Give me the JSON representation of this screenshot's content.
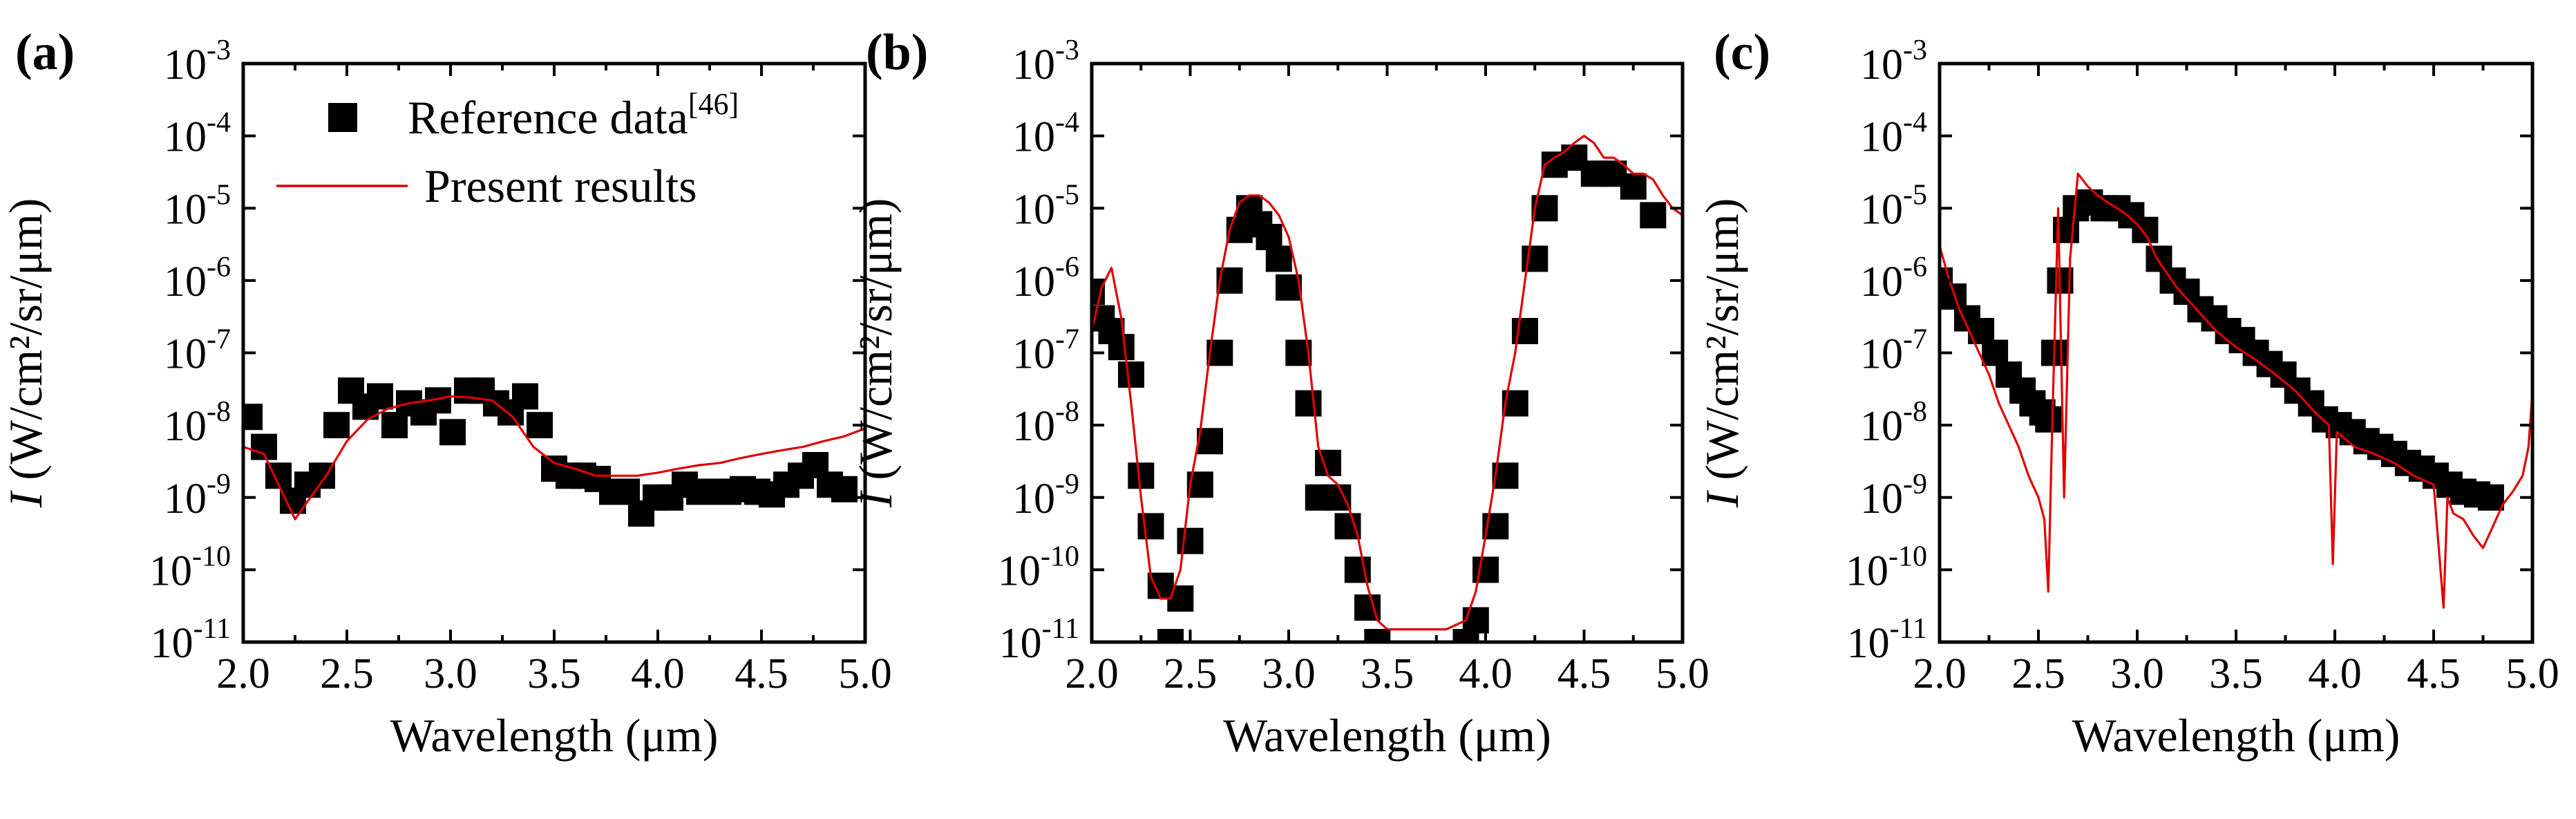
{
  "chart_data": [
    {
      "type": "scatter+line",
      "panel_label": "(a)",
      "xlabel": "Wavelength (μm)",
      "ylabel_prefix": "I",
      "ylabel_body": "(W/cm²/sr/μm)",
      "xlim": [
        2.0,
        5.0
      ],
      "ylim_log10": [
        -11,
        -3
      ],
      "xticks": [
        "2.0",
        "2.5",
        "3.0",
        "3.5",
        "4.0",
        "4.5",
        "5.0"
      ],
      "yticks": [
        "10-11",
        "10-10",
        "10-9",
        "10-8",
        "10-7",
        "10-6",
        "10-5",
        "10-4",
        "10-3"
      ],
      "legend": {
        "placement": "top-right",
        "reference_label": "Reference data",
        "reference_superscript": "[46]",
        "present_label": "Present results"
      },
      "series": [
        {
          "name": "Reference data[46]",
          "style": "black-square",
          "x": [
            2.03,
            2.1,
            2.17,
            2.24,
            2.31,
            2.38,
            2.45,
            2.52,
            2.59,
            2.66,
            2.73,
            2.8,
            2.87,
            2.94,
            3.01,
            3.08,
            3.15,
            3.22,
            3.29,
            3.36,
            3.43,
            3.5,
            3.57,
            3.64,
            3.71,
            3.78,
            3.85,
            3.92,
            3.99,
            4.06,
            4.13,
            4.2,
            4.27,
            4.34,
            4.41,
            4.48,
            4.55,
            4.62,
            4.69,
            4.76,
            4.83,
            4.9
          ],
          "y": [
            1.3e-08,
            5e-09,
            2e-09,
            9e-10,
            1.5e-09,
            2e-09,
            1e-08,
            3e-08,
            1.8e-08,
            2.5e-08,
            1e-08,
            2e-08,
            1.5e-08,
            2.2e-08,
            8e-09,
            3e-08,
            3e-08,
            2e-08,
            1.5e-08,
            2.5e-08,
            1e-08,
            2.5e-09,
            2e-09,
            2e-09,
            1.8e-09,
            1.2e-09,
            1.2e-09,
            6e-10,
            1e-09,
            1e-09,
            1.5e-09,
            1.2e-09,
            1.2e-09,
            1.2e-09,
            1.3e-09,
            1.2e-09,
            1.1e-09,
            1.5e-09,
            2e-09,
            2.8e-09,
            1.5e-09,
            1.3e-09
          ]
        },
        {
          "name": "Present results",
          "style": "red-line",
          "x": [
            2.0,
            2.1,
            2.2,
            2.25,
            2.3,
            2.4,
            2.5,
            2.6,
            2.7,
            2.8,
            2.9,
            3.0,
            3.1,
            3.2,
            3.3,
            3.4,
            3.5,
            3.6,
            3.7,
            3.8,
            3.9,
            4.0,
            4.1,
            4.2,
            4.3,
            4.4,
            4.5,
            4.6,
            4.7,
            4.8,
            4.9,
            5.0
          ],
          "y": [
            5e-09,
            4e-09,
            1e-09,
            5e-10,
            8e-10,
            2e-09,
            6e-09,
            1.2e-08,
            1.7e-08,
            2e-08,
            2.2e-08,
            2.5e-08,
            2.4e-08,
            2.2e-08,
            1.3e-08,
            5e-09,
            3e-09,
            2.5e-09,
            2e-09,
            2e-09,
            2e-09,
            2.2e-09,
            2.5e-09,
            2.8e-09,
            3e-09,
            3.5e-09,
            4e-09,
            4.5e-09,
            5e-09,
            6e-09,
            7e-09,
            9e-09
          ]
        }
      ]
    },
    {
      "type": "scatter+line",
      "panel_label": "(b)",
      "xlabel": "Wavelength (μm)",
      "ylabel_prefix": "I",
      "ylabel_body": "(W/cm²/sr/μm)",
      "xlim": [
        2.0,
        5.0
      ],
      "ylim_log10": [
        -11,
        -3
      ],
      "xticks": [
        "2.0",
        "2.5",
        "3.0",
        "3.5",
        "4.0",
        "4.5",
        "5.0"
      ],
      "yticks": [
        "10-11",
        "10-10",
        "10-9",
        "10-8",
        "10-7",
        "10-6",
        "10-5",
        "10-4",
        "10-3"
      ],
      "series": [
        {
          "name": "Reference data[46]",
          "style": "black-square",
          "x": [
            2.0,
            2.05,
            2.1,
            2.15,
            2.2,
            2.25,
            2.3,
            2.35,
            2.4,
            2.45,
            2.5,
            2.55,
            2.6,
            2.65,
            2.7,
            2.75,
            2.8,
            2.85,
            2.9,
            2.95,
            3.0,
            3.05,
            3.1,
            3.15,
            3.2,
            3.25,
            3.3,
            3.35,
            3.4,
            3.45,
            3.9,
            3.95,
            4.0,
            4.05,
            4.1,
            4.15,
            4.2,
            4.25,
            4.3,
            4.35,
            4.45,
            4.55,
            4.65,
            4.75,
            4.85
          ],
          "y": [
            7e-07,
            3e-07,
            2e-07,
            1.2e-07,
            5e-08,
            2e-09,
            4e-10,
            6e-11,
            1e-11,
            4e-11,
            2.5e-10,
            1.5e-09,
            6e-09,
            1e-07,
            1e-06,
            5e-06,
            1e-05,
            6e-06,
            4e-06,
            2e-06,
            8e-07,
            1e-07,
            2e-08,
            1e-09,
            3e-09,
            1e-09,
            4e-10,
            1e-10,
            3e-11,
            1e-11,
            1e-11,
            2e-11,
            1e-10,
            4e-10,
            2e-09,
            2e-08,
            2e-07,
            2e-06,
            1e-05,
            4e-05,
            5e-05,
            3e-05,
            3e-05,
            2e-05,
            8e-06
          ]
        },
        {
          "name": "Present results",
          "style": "red-line",
          "x": [
            2.0,
            2.05,
            2.1,
            2.15,
            2.2,
            2.25,
            2.3,
            2.35,
            2.4,
            2.45,
            2.5,
            2.55,
            2.6,
            2.65,
            2.7,
            2.75,
            2.8,
            2.85,
            2.9,
            2.95,
            3.0,
            3.05,
            3.1,
            3.15,
            3.2,
            3.25,
            3.3,
            3.35,
            3.4,
            3.45,
            3.5,
            3.6,
            3.7,
            3.8,
            3.9,
            3.95,
            4.0,
            4.05,
            4.1,
            4.15,
            4.2,
            4.25,
            4.3,
            4.35,
            4.4,
            4.45,
            4.5,
            4.55,
            4.6,
            4.65,
            4.7,
            4.75,
            4.8,
            4.85,
            4.9,
            4.95,
            5.0
          ],
          "y": [
            2e-07,
            8e-07,
            1.5e-06,
            3e-07,
            2e-08,
            1e-09,
            8e-11,
            4e-11,
            4e-11,
            1e-10,
            1.5e-09,
            8e-09,
            1e-07,
            1e-06,
            5e-06,
            1.2e-05,
            1.5e-05,
            1.5e-05,
            1.2e-05,
            8e-06,
            4e-06,
            1e-06,
            1e-07,
            5e-09,
            2e-09,
            1.5e-09,
            8e-10,
            3e-10,
            6e-11,
            2e-11,
            1.5e-11,
            1.5e-11,
            1.5e-11,
            1.5e-11,
            2e-11,
            5e-11,
            3e-10,
            2e-09,
            2e-08,
            1e-07,
            1e-06,
            1e-05,
            4e-05,
            5e-05,
            6e-05,
            8e-05,
            0.0001,
            8e-05,
            5e-05,
            5e-05,
            4e-05,
            3e-05,
            3e-05,
            2.5e-05,
            1.5e-05,
            1e-05,
            8e-06
          ]
        }
      ]
    },
    {
      "type": "scatter+line",
      "panel_label": "(c)",
      "xlabel": "Wavelength (μm)",
      "ylabel_prefix": "I",
      "ylabel_body": "(W/cm²/sr/μm)",
      "xlim": [
        2.0,
        5.0
      ],
      "ylim_log10": [
        -11,
        -3
      ],
      "xticks": [
        "2.0",
        "2.5",
        "3.0",
        "3.5",
        "4.0",
        "4.5",
        "5.0"
      ],
      "yticks": [
        "10-11",
        "10-10",
        "10-9",
        "10-8",
        "10-7",
        "10-6",
        "10-5",
        "10-4",
        "10-3"
      ],
      "series": [
        {
          "name": "Reference data[46]",
          "style": "black-square",
          "x": [
            2.0,
            2.07,
            2.14,
            2.21,
            2.28,
            2.35,
            2.42,
            2.47,
            2.52,
            2.55,
            2.58,
            2.61,
            2.64,
            2.69,
            2.76,
            2.83,
            2.9,
            2.97,
            3.04,
            3.11,
            3.18,
            3.25,
            3.32,
            3.39,
            3.46,
            3.53,
            3.6,
            3.67,
            3.74,
            3.81,
            3.88,
            3.95,
            4.02,
            4.09,
            4.16,
            4.23,
            4.3,
            4.37,
            4.44,
            4.51,
            4.58,
            4.65,
            4.72,
            4.79
          ],
          "y": [
            1e-06,
            6e-07,
            3e-07,
            2e-07,
            1e-07,
            5e-08,
            3e-08,
            2e-08,
            1.5e-08,
            1.2e-08,
            1e-07,
            1e-06,
            5e-06,
            1e-05,
            1.2e-05,
            1e-05,
            1e-05,
            8e-06,
            5e-06,
            2e-06,
            1e-06,
            7e-07,
            4e-07,
            3e-07,
            2e-07,
            1.5e-07,
            1e-07,
            7e-08,
            5e-08,
            3e-08,
            2e-08,
            1.2e-08,
            1e-08,
            8e-09,
            6e-09,
            5e-09,
            4e-09,
            3e-09,
            2.5e-09,
            2e-09,
            1.5e-09,
            1.2e-09,
            1.1e-09,
            1e-09
          ]
        },
        {
          "name": "Present results",
          "style": "red-line",
          "x": [
            2.0,
            2.05,
            2.1,
            2.15,
            2.2,
            2.25,
            2.3,
            2.35,
            2.4,
            2.45,
            2.5,
            2.53,
            2.55,
            2.57,
            2.6,
            2.63,
            2.66,
            2.7,
            2.75,
            2.8,
            2.85,
            2.9,
            2.95,
            3.0,
            3.05,
            3.1,
            3.2,
            3.3,
            3.4,
            3.5,
            3.6,
            3.7,
            3.8,
            3.9,
            3.97,
            3.99,
            4.01,
            4.1,
            4.2,
            4.3,
            4.4,
            4.5,
            4.55,
            4.57,
            4.6,
            4.65,
            4.7,
            4.75,
            4.8,
            4.85,
            4.9,
            4.95,
            4.98,
            5.0
          ],
          "y": [
            3e-06,
            1e-06,
            4e-07,
            2e-07,
            1e-07,
            5e-08,
            2e-08,
            1e-08,
            5e-09,
            2e-09,
            1e-09,
            5e-10,
            5e-11,
            1e-08,
            1e-05,
            1e-09,
            2e-06,
            3e-05,
            2e-05,
            1.5e-05,
            1.2e-05,
            1e-05,
            8e-06,
            6e-06,
            4e-06,
            2e-06,
            8e-07,
            4e-07,
            2e-07,
            1.2e-07,
            8e-08,
            5e-08,
            3e-08,
            1.5e-08,
            1e-08,
            1.2e-10,
            8e-09,
            5e-09,
            4e-09,
            3e-09,
            2e-09,
            1.5e-09,
            3e-11,
            1e-09,
            6e-10,
            5e-10,
            3e-10,
            2e-10,
            4e-10,
            8e-10,
            1.2e-09,
            2e-09,
            5e-09,
            3e-08
          ]
        }
      ]
    }
  ]
}
